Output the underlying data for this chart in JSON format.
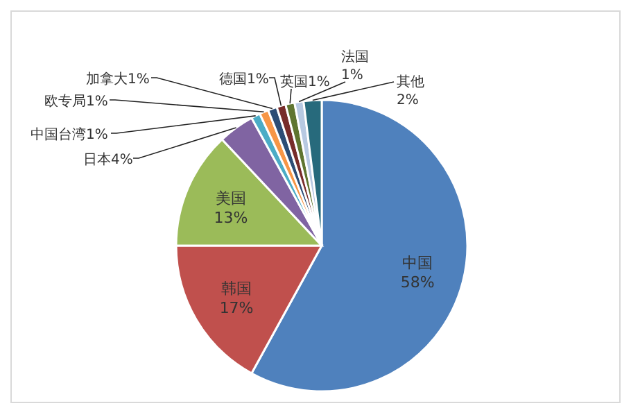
{
  "chart_data": {
    "type": "pie",
    "categories": [
      "中国",
      "韩国",
      "美国",
      "日本",
      "中国台湾",
      "欧专局",
      "加拿大",
      "德国",
      "英国",
      "法国",
      "其他"
    ],
    "values": [
      58,
      17,
      13,
      4,
      1,
      1,
      1,
      1,
      1,
      1,
      2
    ],
    "value_labels": [
      "58%",
      "17%",
      "13%",
      "4%",
      "1%",
      "1%",
      "1%",
      "1%",
      "1%",
      "1%",
      "2%"
    ],
    "colors": [
      "#4f81bd",
      "#c0504d",
      "#9bbb59",
      "#8064a2",
      "#4bacc6",
      "#f79646",
      "#2c4d75",
      "#772c2a",
      "#5f7530",
      "#b7c9e2",
      "#276a7c"
    ]
  }
}
